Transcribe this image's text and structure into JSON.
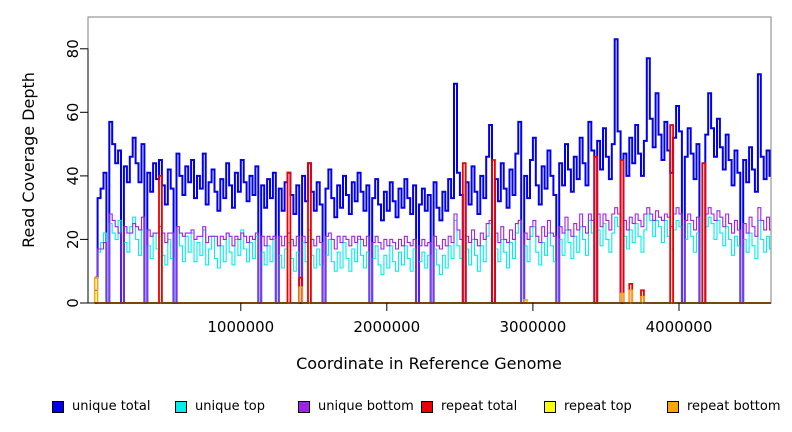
{
  "chart_data": {
    "type": "line",
    "subtype": "step",
    "title": "",
    "xlabel": "Coordinate in Reference Genome",
    "ylabel": "Read Coverage Depth",
    "xlim": [
      -46000,
      4630000
    ],
    "ylim": [
      0,
      90
    ],
    "grid": false,
    "box_color": "#808080",
    "axis_color": "#000000",
    "bin_size": 20000,
    "x_start": 0,
    "x_ticks": [
      {
        "value": 1000000,
        "label": "1000000"
      },
      {
        "value": 2000000,
        "label": "2000000"
      },
      {
        "value": 3000000,
        "label": "3000000"
      },
      {
        "value": 4000000,
        "label": "4000000"
      }
    ],
    "y_ticks": [
      {
        "value": 0,
        "label": "0"
      },
      {
        "value": 20,
        "label": "20"
      },
      {
        "value": 40,
        "label": "40"
      },
      {
        "value": 60,
        "label": "60"
      },
      {
        "value": 80,
        "label": "80"
      }
    ],
    "legend_position": "bottom",
    "series": [
      {
        "name": "unique total",
        "color": "#0000EE",
        "width": 2,
        "values": [
          8,
          33,
          36,
          41,
          0,
          57,
          50,
          44,
          48,
          0,
          43,
          38,
          46,
          52,
          44,
          38,
          50,
          0,
          41,
          35,
          44,
          39,
          45,
          37,
          31,
          42,
          36,
          0,
          47,
          40,
          34,
          43,
          38,
          45,
          33,
          40,
          36,
          47,
          31,
          38,
          42,
          35,
          29,
          39,
          33,
          44,
          37,
          30,
          41,
          35,
          45,
          38,
          32,
          40,
          34,
          43,
          0,
          37,
          30,
          39,
          33,
          41,
          0,
          36,
          29,
          38,
          41,
          34,
          28,
          37,
          0,
          40,
          32,
          44,
          35,
          29,
          38,
          31,
          0,
          36,
          42,
          33,
          27,
          37,
          30,
          40,
          34,
          28,
          38,
          32,
          41,
          35,
          29,
          37,
          0,
          33,
          39,
          31,
          26,
          35,
          29,
          38,
          32,
          27,
          36,
          30,
          39,
          33,
          28,
          37,
          0,
          31,
          36,
          29,
          34,
          0,
          38,
          30,
          26,
          35,
          29,
          39,
          33,
          69,
          41,
          34,
          0,
          38,
          31,
          43,
          35,
          28,
          40,
          33,
          46,
          56,
          0,
          39,
          32,
          44,
          36,
          30,
          42,
          34,
          47,
          57,
          0,
          40,
          33,
          45,
          52,
          37,
          31,
          43,
          36,
          48,
          40,
          34,
          0,
          44,
          37,
          50,
          42,
          35,
          46,
          39,
          52,
          44,
          37,
          57,
          48,
          0,
          51,
          42,
          55,
          46,
          39,
          50,
          83,
          54,
          0,
          47,
          40,
          52,
          44,
          56,
          47,
          40,
          51,
          77,
          58,
          49,
          66,
          53,
          45,
          57,
          48,
          41,
          52,
          62,
          54,
          0,
          46,
          55,
          47,
          39,
          50,
          0,
          0,
          53,
          66,
          55,
          46,
          58,
          49,
          42,
          53,
          45,
          37,
          48,
          41,
          0,
          45,
          38,
          49,
          42,
          35,
          72,
          46,
          39,
          48,
          40
        ]
      },
      {
        "name": "unique top",
        "color": "#00EEEE",
        "width": 1.1,
        "values": [
          4,
          16,
          19,
          22,
          0,
          25,
          22,
          20,
          26,
          0,
          19,
          16,
          24,
          27,
          20,
          15,
          23,
          0,
          18,
          14,
          22,
          17,
          21,
          15,
          12,
          20,
          14,
          0,
          23,
          18,
          13,
          21,
          16,
          22,
          13,
          19,
          15,
          23,
          12,
          17,
          21,
          14,
          11,
          18,
          13,
          22,
          16,
          12,
          20,
          15,
          23,
          17,
          13,
          19,
          14,
          21,
          0,
          16,
          12,
          18,
          13,
          20,
          0,
          15,
          11,
          17,
          19,
          14,
          10,
          16,
          0,
          19,
          13,
          21,
          15,
          11,
          17,
          12,
          0,
          15,
          20,
          13,
          10,
          16,
          11,
          19,
          14,
          10,
          17,
          13,
          20,
          15,
          11,
          16,
          0,
          14,
          18,
          12,
          9,
          15,
          11,
          18,
          13,
          10,
          16,
          12,
          18,
          14,
          10,
          17,
          0,
          13,
          16,
          11,
          15,
          0,
          17,
          12,
          9,
          15,
          11,
          18,
          14,
          26,
          18,
          14,
          0,
          17,
          12,
          20,
          15,
          10,
          18,
          13,
          21,
          25,
          0,
          17,
          13,
          20,
          16,
          11,
          19,
          14,
          22,
          26,
          0,
          18,
          13,
          21,
          24,
          16,
          12,
          19,
          15,
          22,
          18,
          13,
          0,
          20,
          15,
          23,
          19,
          14,
          21,
          16,
          24,
          20,
          15,
          26,
          22,
          0,
          23,
          18,
          25,
          20,
          16,
          22,
          27,
          24,
          0,
          21,
          17,
          23,
          19,
          25,
          21,
          16,
          23,
          28,
          26,
          21,
          26,
          24,
          19,
          26,
          21,
          17,
          23,
          26,
          24,
          0,
          20,
          25,
          21,
          16,
          22,
          0,
          0,
          24,
          27,
          25,
          20,
          26,
          22,
          18,
          24,
          20,
          15,
          21,
          18,
          0,
          20,
          16,
          22,
          18,
          14,
          26,
          20,
          16,
          21,
          17
        ]
      },
      {
        "name": "unique bottom",
        "color": "#A020F0",
        "width": 1.1,
        "values": [
          4,
          17,
          17,
          19,
          0,
          28,
          26,
          24,
          22,
          0,
          24,
          22,
          22,
          25,
          24,
          23,
          27,
          0,
          23,
          21,
          22,
          22,
          24,
          22,
          19,
          22,
          22,
          0,
          24,
          22,
          21,
          22,
          22,
          23,
          20,
          21,
          21,
          24,
          19,
          21,
          21,
          21,
          18,
          21,
          20,
          22,
          21,
          18,
          21,
          20,
          22,
          21,
          19,
          21,
          20,
          22,
          0,
          21,
          18,
          21,
          20,
          21,
          0,
          21,
          18,
          21,
          22,
          20,
          18,
          21,
          0,
          21,
          19,
          23,
          20,
          18,
          21,
          19,
          0,
          21,
          22,
          20,
          17,
          21,
          19,
          21,
          20,
          18,
          21,
          19,
          21,
          20,
          18,
          21,
          0,
          19,
          21,
          19,
          17,
          20,
          18,
          20,
          19,
          17,
          20,
          18,
          21,
          19,
          18,
          20,
          0,
          18,
          20,
          18,
          19,
          0,
          21,
          18,
          17,
          20,
          18,
          21,
          19,
          28,
          23,
          20,
          0,
          21,
          19,
          23,
          20,
          18,
          22,
          20,
          25,
          26,
          0,
          22,
          19,
          24,
          20,
          19,
          23,
          20,
          25,
          26,
          0,
          22,
          20,
          24,
          26,
          21,
          19,
          24,
          21,
          26,
          22,
          21,
          0,
          24,
          22,
          27,
          23,
          21,
          25,
          23,
          28,
          24,
          22,
          28,
          26,
          0,
          28,
          24,
          28,
          26,
          23,
          28,
          30,
          28,
          0,
          26,
          23,
          27,
          25,
          28,
          26,
          24,
          28,
          30,
          28,
          26,
          29,
          27,
          26,
          28,
          27,
          24,
          28,
          30,
          28,
          0,
          26,
          28,
          26,
          23,
          27,
          0,
          0,
          28,
          30,
          28,
          26,
          29,
          27,
          24,
          28,
          25,
          22,
          26,
          23,
          0,
          25,
          22,
          27,
          24,
          21,
          30,
          26,
          23,
          27,
          23
        ]
      },
      {
        "name": "repeat total",
        "color": "#EE0000",
        "width": 1.8,
        "base": 0,
        "spikes": [
          [
            22,
            40
          ],
          [
            66,
            41
          ],
          [
            70,
            8
          ],
          [
            73,
            44
          ],
          [
            126,
            44
          ],
          [
            136,
            45
          ],
          [
            171,
            46
          ],
          [
            180,
            45
          ],
          [
            183,
            6
          ],
          [
            187,
            4
          ],
          [
            197,
            56
          ],
          [
            208,
            44
          ]
        ]
      },
      {
        "name": "repeat top",
        "color": "#FFFF00",
        "width": 1.2,
        "base": 0,
        "spikes": [
          [
            0,
            3
          ]
        ]
      },
      {
        "name": "repeat bottom",
        "color": "#FFA500",
        "width": 1.5,
        "base": 0,
        "spikes": [
          [
            0,
            8
          ],
          [
            70,
            5
          ],
          [
            147,
            1
          ],
          [
            180,
            3
          ],
          [
            183,
            4
          ],
          [
            187,
            2
          ]
        ]
      }
    ]
  }
}
